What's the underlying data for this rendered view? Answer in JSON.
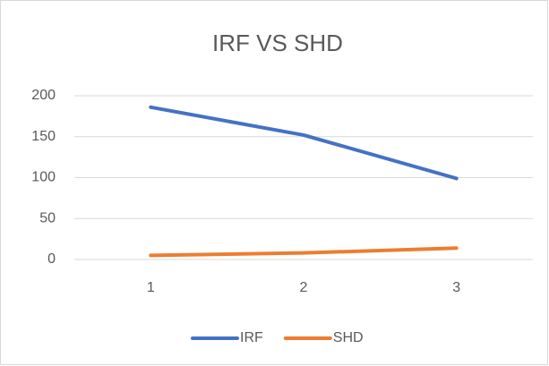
{
  "chart_data": {
    "type": "line",
    "title": "IRF VS SHD",
    "categories": [
      "1",
      "2",
      "3"
    ],
    "series": [
      {
        "name": "IRF",
        "color": "#4472c4",
        "values": [
          186,
          152,
          99
        ]
      },
      {
        "name": "SHD",
        "color": "#ed7d31",
        "values": [
          5,
          8,
          14
        ]
      }
    ],
    "ylim": [
      0,
      200
    ],
    "yticks": [
      0,
      50,
      100,
      150,
      200
    ],
    "grid": true,
    "legend": "bottom"
  }
}
